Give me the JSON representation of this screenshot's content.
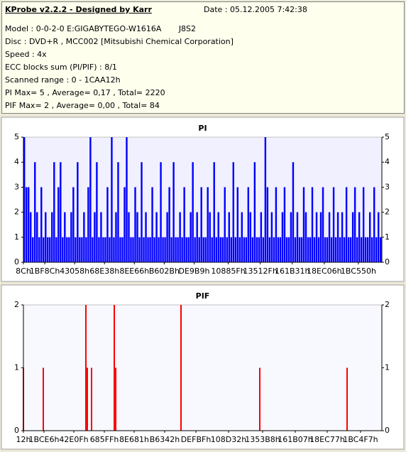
{
  "header": {
    "title": "KProbe v2.2.2 - Designed by Karr",
    "date": "Date : 05.12.2005 7:42:38",
    "lines": [
      "Model : 0-0-2-0 E:GIGABYTEGO-W1616A       J8S2",
      "Disc : DVD+R , MCC002 [Mitsubishi Chemical Corporation]",
      "Speed : 4x",
      "ECC blocks sum (PI/PIF) : 8/1",
      "Scanned range : 0 - 1CAA12h",
      "PI Max= 5 , Average= 0,17 , Total= 2220",
      "PIF Max= 2 , Average= 0,00 , Total= 84"
    ]
  },
  "chart_data": [
    {
      "type": "bar",
      "title": "PI",
      "color": "#0000ff",
      "values": [
        5,
        3,
        3,
        2,
        1,
        4,
        2,
        1,
        3,
        1,
        2,
        1,
        1,
        2,
        4,
        1,
        3,
        4,
        1,
        2,
        1,
        1,
        2,
        3,
        1,
        4,
        1,
        1,
        2,
        1,
        3,
        5,
        1,
        2,
        4,
        1,
        2,
        1,
        1,
        3,
        1,
        5,
        1,
        2,
        4,
        1,
        1,
        3,
        5,
        2,
        1,
        1,
        3,
        2,
        1,
        4,
        1,
        2,
        1,
        1,
        3,
        1,
        2,
        1,
        4,
        1,
        1,
        2,
        3,
        1,
        4,
        1,
        1,
        2,
        1,
        3,
        1,
        1,
        2,
        4,
        1,
        2,
        1,
        3,
        1,
        1,
        3,
        2,
        1,
        4,
        1,
        2,
        1,
        1,
        3,
        1,
        2,
        1,
        4,
        1,
        3,
        1,
        2,
        1,
        1,
        3,
        2,
        1,
        4,
        1,
        1,
        2,
        1,
        5,
        3,
        1,
        2,
        1,
        3,
        1,
        1,
        2,
        3,
        1,
        1,
        2,
        4,
        1,
        2,
        1,
        1,
        3,
        2,
        1,
        1,
        3,
        1,
        2,
        1,
        2,
        3,
        1,
        1,
        2,
        1,
        3,
        1,
        2,
        1,
        2,
        1,
        3,
        1,
        1,
        2,
        3,
        1,
        2,
        1,
        3,
        1,
        1,
        2,
        1,
        3,
        1,
        2,
        1
      ],
      "xlim": [
        0,
        168
      ],
      "ylim": [
        0,
        5
      ],
      "yticks": [
        0,
        1,
        2,
        3,
        4,
        5
      ],
      "xticks": [
        {
          "value": 0,
          "label": "8Ch"
        },
        {
          "value": 10,
          "label": "1BF8Ch"
        },
        {
          "value": 24,
          "label": "43058h"
        },
        {
          "value": 38,
          "label": "68E38h"
        },
        {
          "value": 52,
          "label": "8EE66h"
        },
        {
          "value": 66,
          "label": "B602Bh"
        },
        {
          "value": 80,
          "label": "DE9B9h"
        },
        {
          "value": 96,
          "label": "10885Fh"
        },
        {
          "value": 111,
          "label": "13512Fh"
        },
        {
          "value": 126,
          "label": "161B31h"
        },
        {
          "value": 141,
          "label": "18EC06h"
        },
        {
          "value": 157,
          "label": "1BC550h"
        }
      ]
    },
    {
      "type": "bar",
      "title": "PIF",
      "color": "#ff0000",
      "x": [
        0,
        28,
        88,
        90,
        96,
        128,
        130,
        222,
        333,
        456
      ],
      "values": [
        1,
        1,
        2,
        1,
        1,
        2,
        1,
        2,
        1,
        1
      ],
      "xlim": [
        0,
        505
      ],
      "ylim": [
        0,
        2
      ],
      "yticks": [
        0,
        1,
        2
      ],
      "xticks": [
        {
          "value": 0,
          "label": "12h"
        },
        {
          "value": 29,
          "label": "1BCE6h"
        },
        {
          "value": 71,
          "label": "42E0Fh"
        },
        {
          "value": 114,
          "label": "685FFh"
        },
        {
          "value": 156,
          "label": "8E681h"
        },
        {
          "value": 199,
          "label": "B6342h"
        },
        {
          "value": 243,
          "label": "DEFBFh"
        },
        {
          "value": 289,
          "label": "108D32h"
        },
        {
          "value": 337,
          "label": "1353B8h"
        },
        {
          "value": 383,
          "label": "161B07h"
        },
        {
          "value": 428,
          "label": "18EC77h"
        },
        {
          "value": 475,
          "label": "1BC4F7h"
        }
      ]
    }
  ]
}
